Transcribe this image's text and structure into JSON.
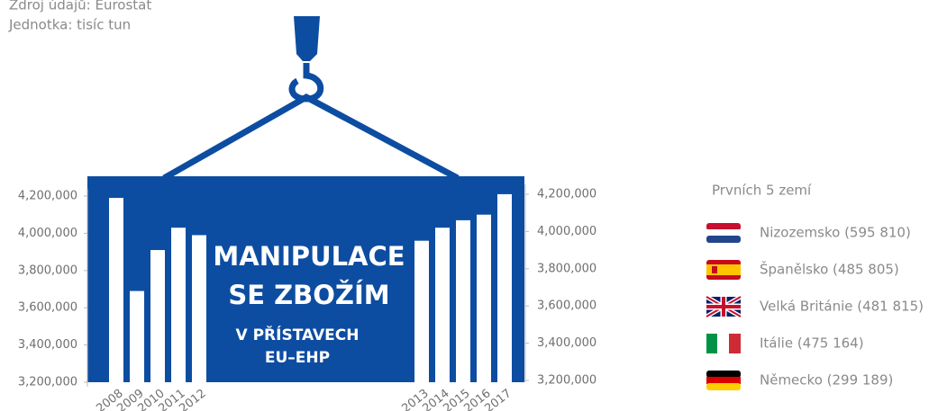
{
  "source": "Zdroj údajů: Eurostat",
  "unit": "Jednotka: tisíc tun",
  "chart_data": {
    "type": "bar",
    "title": [
      "MANIPULACE",
      "SE ZBOŽÍM"
    ],
    "subtitle": [
      "V PŘÍSTAVECH",
      "EU–EHP"
    ],
    "categories": [
      "2008",
      "2009",
      "2010",
      "2011",
      "2012",
      "2013",
      "2014",
      "2015",
      "2016",
      "2017"
    ],
    "values": [
      4190000,
      3690000,
      3910000,
      4030000,
      3990000,
      3960000,
      4030000,
      4070000,
      4100000,
      4210000
    ],
    "color": "#ffffff",
    "ylim": [
      3200000,
      4200000
    ],
    "yticks": [
      {
        "value": 3200000,
        "label": "3,200,000"
      },
      {
        "value": 3400000,
        "label": "3,400,000"
      },
      {
        "value": 3600000,
        "label": "3,600,000"
      },
      {
        "value": 3800000,
        "label": "3,800,000"
      },
      {
        "value": 4000000,
        "label": "4,000,000"
      },
      {
        "value": 4200000,
        "label": "4,200,000"
      }
    ]
  },
  "top_countries": {
    "title": "Prvních 5 zemí",
    "items": [
      "Nizozemsko (595 810)",
      "Španělsko (485 805)",
      "Velká Británie (481 815)",
      "Itálie (475 164)",
      "Německo (299 189)"
    ]
  }
}
